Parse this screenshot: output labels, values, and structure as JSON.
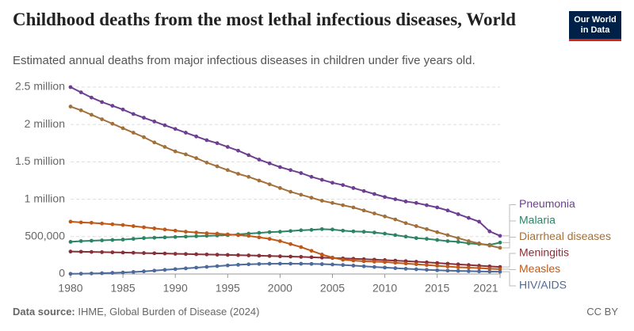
{
  "logo_lines": [
    "Our World",
    "in Data"
  ],
  "license": "CC BY",
  "chart_data": {
    "type": "line",
    "title": "Childhood deaths from the most lethal infectious diseases, World",
    "subtitle": "Estimated annual deaths from major infectious diseases in children under five years old.",
    "source_label": "Data source:",
    "source": "IHME, Global Burden of Disease (2024)",
    "x": [
      1980,
      1981,
      1982,
      1983,
      1984,
      1985,
      1986,
      1987,
      1988,
      1989,
      1990,
      1991,
      1992,
      1993,
      1994,
      1995,
      1996,
      1997,
      1998,
      1999,
      2000,
      2001,
      2002,
      2003,
      2004,
      2005,
      2006,
      2007,
      2008,
      2009,
      2010,
      2011,
      2012,
      2013,
      2014,
      2015,
      2016,
      2017,
      2018,
      2019,
      2020,
      2021
    ],
    "xlim": [
      1980,
      2021
    ],
    "xticks": [
      1980,
      1985,
      1990,
      1995,
      2000,
      2005,
      2010,
      2015,
      2021
    ],
    "ylim": [
      0,
      2500000
    ],
    "yticks": [
      0,
      {
        "value": 500000,
        "label": "500,000"
      },
      {
        "value": 1000000,
        "label": "1 million"
      },
      {
        "value": 1500000,
        "label": "1.5 million"
      },
      {
        "value": 2000000,
        "label": "2 million"
      },
      {
        "value": 2500000,
        "label": "2.5 million"
      }
    ],
    "grid": true,
    "series": [
      {
        "name": "Pneumonia",
        "color": "#6d3e91",
        "values": [
          2500000,
          2430000,
          2360000,
          2300000,
          2250000,
          2200000,
          2140000,
          2090000,
          2040000,
          1990000,
          1940000,
          1890000,
          1840000,
          1790000,
          1750000,
          1700000,
          1650000,
          1590000,
          1530000,
          1480000,
          1430000,
          1390000,
          1350000,
          1300000,
          1260000,
          1220000,
          1190000,
          1150000,
          1110000,
          1070000,
          1030000,
          1000000,
          970000,
          950000,
          920000,
          890000,
          850000,
          800000,
          750000,
          700000,
          570000,
          510000
        ]
      },
      {
        "name": "Malaria",
        "color": "#2c8465",
        "values": [
          430000,
          440000,
          445000,
          450000,
          455000,
          460000,
          470000,
          480000,
          485000,
          490000,
          495000,
          500000,
          505000,
          510000,
          515000,
          520000,
          530000,
          540000,
          550000,
          560000,
          565000,
          575000,
          585000,
          590000,
          600000,
          595000,
          580000,
          570000,
          565000,
          555000,
          540000,
          520000,
          500000,
          480000,
          470000,
          455000,
          440000,
          430000,
          410000,
          400000,
          390000,
          420000
        ]
      },
      {
        "name": "Diarrheal diseases",
        "color": "#a2703a",
        "values": [
          2240000,
          2190000,
          2130000,
          2070000,
          2010000,
          1950000,
          1890000,
          1830000,
          1760000,
          1700000,
          1640000,
          1600000,
          1550000,
          1490000,
          1440000,
          1390000,
          1340000,
          1300000,
          1250000,
          1200000,
          1150000,
          1100000,
          1060000,
          1020000,
          980000,
          950000,
          920000,
          890000,
          850000,
          810000,
          770000,
          730000,
          680000,
          640000,
          600000,
          560000,
          520000,
          480000,
          440000,
          410000,
          380000,
          350000
        ]
      },
      {
        "name": "Meningitis",
        "color": "#883039",
        "values": [
          300000,
          298000,
          295000,
          292000,
          290000,
          287000,
          284000,
          280000,
          277000,
          274000,
          270000,
          267000,
          264000,
          261000,
          258000,
          255000,
          252000,
          249000,
          245000,
          241000,
          237000,
          233000,
          229000,
          224000,
          219000,
          214000,
          209000,
          204000,
          198000,
          192000,
          186000,
          179000,
          172000,
          164000,
          156000,
          147000,
          138000,
          129000,
          120000,
          111000,
          102000,
          94000
        ]
      },
      {
        "name": "Measles",
        "color": "#c05917",
        "values": [
          700000,
          690000,
          685000,
          675000,
          665000,
          655000,
          640000,
          625000,
          610000,
          595000,
          580000,
          565000,
          555000,
          545000,
          540000,
          530000,
          520000,
          510000,
          490000,
          470000,
          440000,
          400000,
          360000,
          310000,
          260000,
          220000,
          190000,
          180000,
          170000,
          165000,
          160000,
          150000,
          140000,
          130000,
          120000,
          110000,
          100000,
          90000,
          85000,
          80000,
          70000,
          65000
        ]
      },
      {
        "name": "HIV/AIDS",
        "color": "#4c6a9c",
        "values": [
          2000,
          4000,
          7000,
          10000,
          15000,
          20000,
          27000,
          35000,
          45000,
          55000,
          65000,
          75000,
          85000,
          95000,
          105000,
          115000,
          123000,
          130000,
          134000,
          137000,
          138000,
          138000,
          137000,
          135000,
          132000,
          127000,
          120000,
          112000,
          103000,
          94000,
          86000,
          78000,
          70000,
          63000,
          56000,
          50000,
          45000,
          41000,
          38000,
          35000,
          32000,
          30000
        ]
      }
    ]
  }
}
